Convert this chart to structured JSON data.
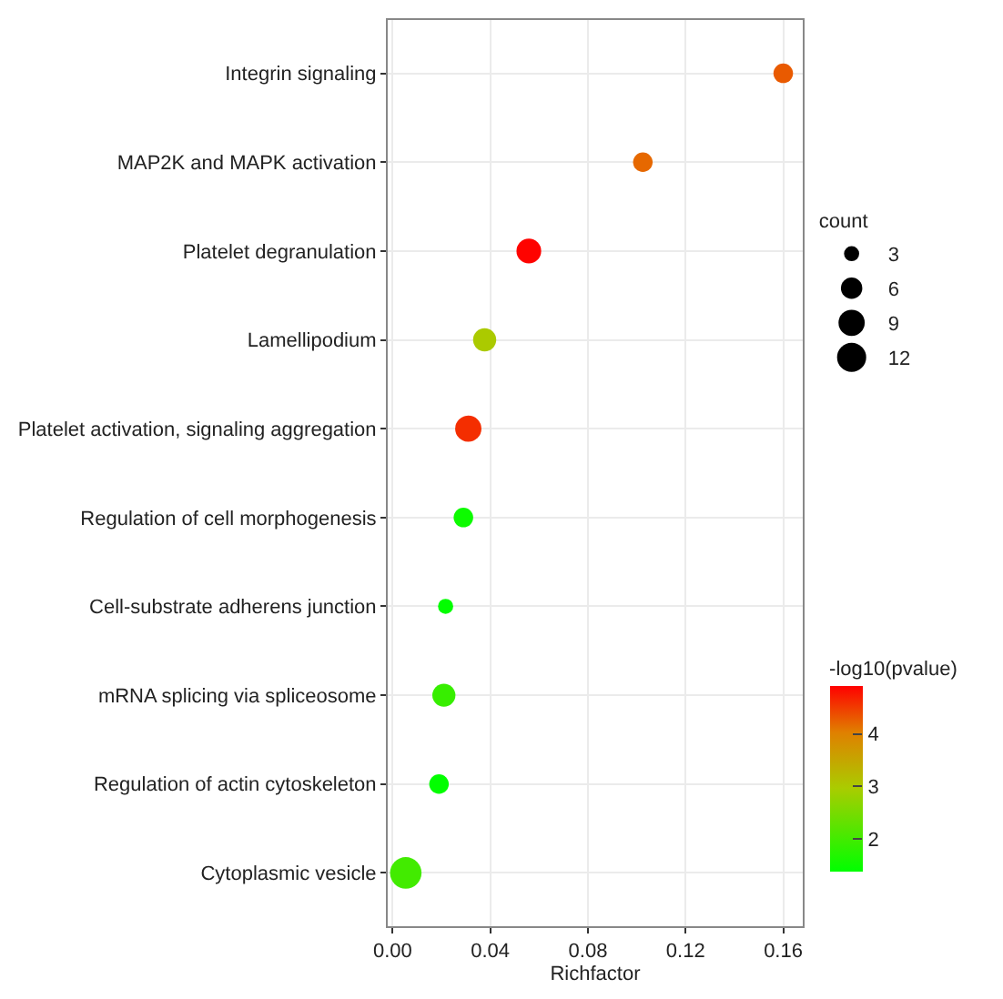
{
  "chart_data": {
    "type": "bubble",
    "categories": [
      "Integrin signaling",
      "MAP2K and MAPK activation",
      "Platelet degranulation",
      "Lamellipodium",
      "Platelet activation, signaling aggregation",
      "Regulation of cell morphogenesis",
      "Cell-substrate adherens junction",
      "mRNA splicing via spliceosome",
      "Regulation of actin cytoskeleton",
      "Cytoplasmic vesicle"
    ],
    "orientation": "horizontal",
    "values": [
      0.16,
      0.1025,
      0.0558,
      0.0377,
      0.031,
      0.029,
      0.0217,
      0.021,
      0.019,
      0.0054
    ],
    "sizes": [
      5,
      5,
      8,
      7,
      9,
      5,
      3,
      7,
      5,
      13
    ],
    "size_legend": [
      3,
      6,
      9,
      12
    ],
    "cvalues": [
      4.3,
      4.2,
      4.9,
      3.0,
      4.6,
      1.5,
      1.4,
      1.9,
      1.4,
      2.0
    ],
    "clim": [
      1.38,
      4.92
    ],
    "cticks": [
      2,
      3,
      4
    ],
    "xlim": [
      -0.002,
      0.168
    ],
    "xticks": [
      {
        "value": 0,
        "label": "0.00"
      },
      0.04,
      0.08,
      0.12,
      0.16
    ],
    "xlabel": "Richfactor",
    "legend_title": "count",
    "clabel": "-log10(pvalue)",
    "grid": true
  }
}
